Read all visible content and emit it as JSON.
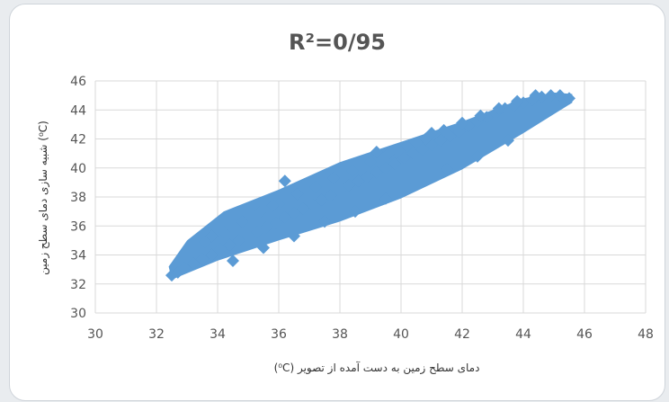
{
  "chart_data": {
    "type": "scatter",
    "title": "R²=0/95",
    "xlabel": "دمای سطح زمین به دست آمده از تصویر (⁰C)",
    "ylabel": "(⁰C) شبیه سازی دمای سطح زمین",
    "xlim": [
      30,
      48
    ],
    "ylim": [
      30,
      46
    ],
    "xticks": [
      30,
      32,
      34,
      36,
      38,
      40,
      42,
      44,
      46,
      48
    ],
    "yticks": [
      30,
      32,
      34,
      36,
      38,
      40,
      42,
      44,
      46
    ],
    "grid": true,
    "marker": "diamond",
    "color": "#5b9bd5",
    "x": [
      32.5,
      32.7,
      32.9,
      33.2,
      33.5,
      33.8,
      34.1,
      34.4,
      34.7,
      35.0,
      35.3,
      35.6,
      35.9,
      36.2,
      36.5,
      36.8,
      37.1,
      37.4,
      37.7,
      38.0,
      38.3,
      38.6,
      38.9,
      39.2,
      39.5,
      39.8,
      40.1,
      40.4,
      40.7,
      41.0,
      41.3,
      41.6,
      41.9,
      42.2,
      42.5,
      42.8,
      43.1,
      43.4,
      43.7,
      44.0,
      44.3,
      44.6,
      44.9,
      45.2,
      45.5,
      33.0,
      33.6,
      34.2,
      34.8,
      35.4,
      36.0,
      36.6,
      37.2,
      37.8,
      38.4,
      39.0,
      39.6,
      40.2,
      40.8,
      41.4,
      42.0,
      42.6,
      43.2,
      43.8,
      44.4,
      34.5,
      35.5,
      36.5,
      37.5,
      38.5,
      39.5,
      40.5,
      41.5,
      42.5,
      43.5,
      36.2,
      39.2,
      41.0,
      33.8,
      35.8
    ],
    "y": [
      32.6,
      32.8,
      33.1,
      33.4,
      33.7,
      34.0,
      34.4,
      34.7,
      35.0,
      35.3,
      35.6,
      35.9,
      36.2,
      36.6,
      36.9,
      37.2,
      37.5,
      37.8,
      38.1,
      38.4,
      38.8,
      39.1,
      39.4,
      39.7,
      40.0,
      40.3,
      40.7,
      41.0,
      41.3,
      41.6,
      41.9,
      42.2,
      42.5,
      42.9,
      43.2,
      43.5,
      43.8,
      44.1,
      44.3,
      44.5,
      44.7,
      44.9,
      45.0,
      45.0,
      44.8,
      34.0,
      34.9,
      35.6,
      36.3,
      37.0,
      37.5,
      38.2,
      38.7,
      39.3,
      39.8,
      40.4,
      41.0,
      41.5,
      42.0,
      42.6,
      43.1,
      43.6,
      44.1,
      44.6,
      45.0,
      33.6,
      34.5,
      35.3,
      36.3,
      37.0,
      37.9,
      38.9,
      39.9,
      40.8,
      41.9,
      39.1,
      41.1,
      42.4,
      35.3,
      37.4
    ]
  }
}
